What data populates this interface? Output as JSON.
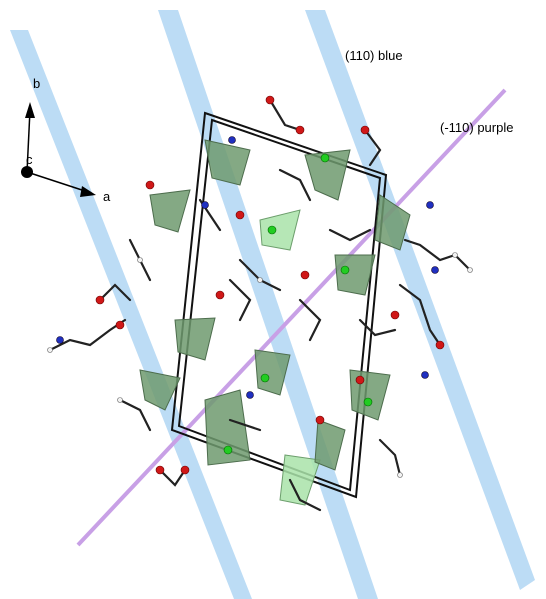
{
  "labels": {
    "axis_b": "b",
    "axis_c": "c",
    "axis_a": "a",
    "plane_110": "(110) blue",
    "plane_m110": "(-110) purple"
  }
}
